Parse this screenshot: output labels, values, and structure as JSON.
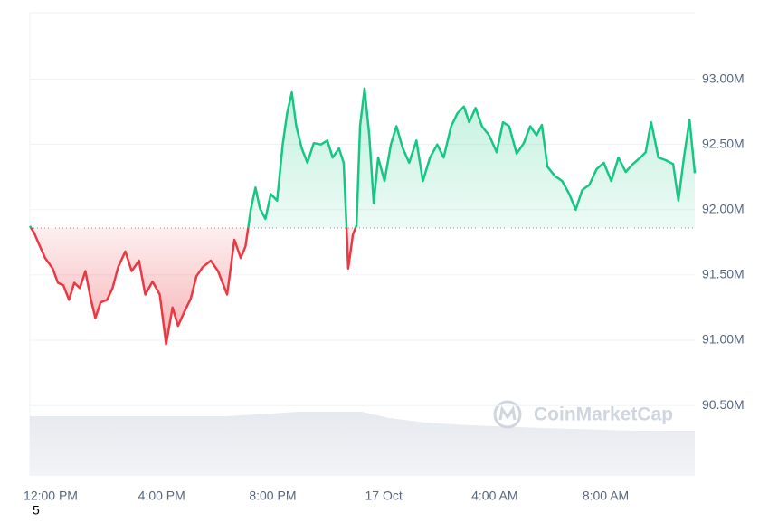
{
  "chart_data": {
    "type": "line",
    "watermark": "CoinMarketCap",
    "note": "5",
    "baseline": 91.86,
    "up_color": "#16c784",
    "down_color": "#ea3943",
    "grid": true,
    "xlim": [
      -0.75,
      23.21
    ],
    "ylim": [
      89.96,
      93.51
    ],
    "xticks": [
      {
        "value": 0,
        "label": "12:00 PM"
      },
      {
        "value": 4,
        "label": "4:00 PM"
      },
      {
        "value": 8,
        "label": "8:00 PM"
      },
      {
        "value": 12,
        "label": "17 Oct"
      },
      {
        "value": 16,
        "label": "4:00 AM"
      },
      {
        "value": 20,
        "label": "8:00 AM"
      }
    ],
    "yticks": [
      {
        "value": 90.5,
        "label": "90.50M"
      },
      {
        "value": 91,
        "label": "91.00M"
      },
      {
        "value": 91.5,
        "label": "91.50M"
      },
      {
        "value": 92,
        "label": "92.00M"
      },
      {
        "value": 92.5,
        "label": "92.50M"
      },
      {
        "value": 93,
        "label": "93.00M"
      }
    ],
    "x": [
      -0.75,
      -0.59,
      -0.43,
      -0.2,
      0.07,
      0.26,
      0.46,
      0.66,
      0.85,
      1.05,
      1.25,
      1.44,
      1.61,
      1.8,
      2.03,
      2.23,
      2.43,
      2.69,
      2.92,
      3.18,
      3.41,
      3.67,
      3.93,
      4.16,
      4.39,
      4.59,
      4.82,
      5.05,
      5.25,
      5.48,
      5.77,
      6.03,
      6.36,
      6.62,
      6.85,
      7.02,
      7.21,
      7.38,
      7.54,
      7.74,
      7.93,
      8.16,
      8.36,
      8.52,
      8.69,
      8.85,
      9.05,
      9.25,
      9.48,
      9.74,
      9.97,
      10.16,
      10.39,
      10.56,
      10.66,
      10.72,
      10.89,
      11.02,
      11.15,
      11.31,
      11.48,
      11.64,
      11.8,
      12.03,
      12.26,
      12.46,
      12.69,
      12.92,
      13.18,
      13.41,
      13.67,
      13.93,
      14.16,
      14.43,
      14.66,
      14.89,
      15.08,
      15.31,
      15.54,
      15.8,
      16.07,
      16.3,
      16.52,
      16.79,
      17.05,
      17.28,
      17.51,
      17.7,
      17.9,
      18.16,
      18.43,
      18.69,
      18.92,
      19.15,
      19.41,
      19.67,
      19.93,
      20.2,
      20.46,
      20.72,
      20.98,
      21.25,
      21.44,
      21.64,
      21.9,
      22.16,
      22.43,
      22.62,
      22.82,
      23.02,
      23.21
    ],
    "values": [
      91.875,
      91.82,
      91.74,
      91.63,
      91.55,
      91.44,
      91.42,
      91.31,
      91.44,
      91.4,
      91.53,
      91.32,
      91.17,
      91.29,
      91.31,
      91.4,
      91.56,
      91.68,
      91.53,
      91.61,
      91.35,
      91.45,
      91.35,
      90.97,
      91.25,
      91.11,
      91.22,
      91.32,
      91.49,
      91.56,
      91.61,
      91.53,
      91.35,
      91.77,
      91.63,
      91.72,
      92.0,
      92.17,
      92.01,
      91.93,
      92.12,
      92.07,
      92.5,
      92.74,
      92.9,
      92.64,
      92.47,
      92.36,
      92.51,
      92.5,
      92.53,
      92.4,
      92.47,
      92.36,
      91.88,
      91.55,
      91.81,
      91.88,
      92.64,
      92.93,
      92.57,
      92.05,
      92.4,
      92.22,
      92.5,
      92.64,
      92.47,
      92.36,
      92.53,
      92.22,
      92.4,
      92.5,
      92.4,
      92.64,
      92.74,
      92.79,
      92.67,
      92.78,
      92.64,
      92.57,
      92.44,
      92.67,
      92.64,
      92.43,
      92.51,
      92.64,
      92.57,
      92.65,
      92.33,
      92.26,
      92.22,
      92.12,
      92.0,
      92.15,
      92.19,
      92.31,
      92.36,
      92.22,
      92.4,
      92.29,
      92.35,
      92.4,
      92.44,
      92.67,
      92.4,
      92.38,
      92.35,
      92.07,
      92.4,
      92.69,
      92.28
    ]
  }
}
